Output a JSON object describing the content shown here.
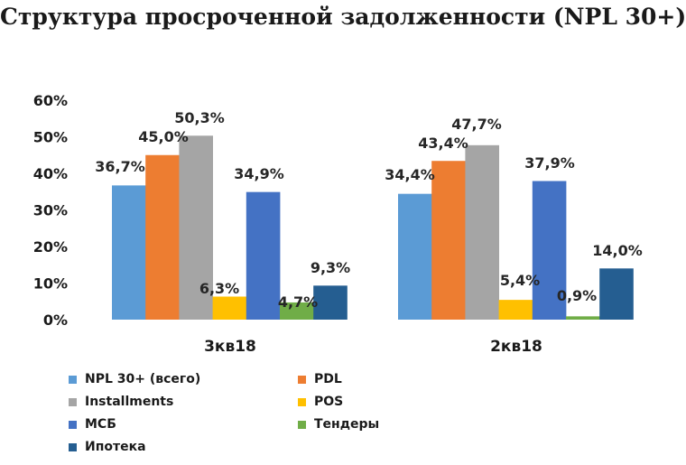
{
  "chart_data": {
    "type": "bar",
    "title": "Структура просроченной задолженности (NPL 30+)",
    "categories": [
      "3кв18",
      "2кв18"
    ],
    "ylim": [
      0,
      60
    ],
    "yticks": [
      "0%",
      "10%",
      "20%",
      "30%",
      "40%",
      "50%",
      "60%"
    ],
    "grid": false,
    "legend_position": "bottom",
    "series": [
      {
        "name": "NPL 30+ (всего)",
        "color": "#5B9BD5",
        "values": [
          36.7,
          34.4
        ],
        "labels": [
          "36,7%",
          "34,4%"
        ]
      },
      {
        "name": "PDL",
        "color": "#ED7D31",
        "values": [
          45.0,
          43.4
        ],
        "labels": [
          "45,0%",
          "43,4%"
        ]
      },
      {
        "name": "Installments",
        "color": "#A5A5A5",
        "values": [
          50.3,
          47.7
        ],
        "labels": [
          "50,3%",
          "47,7%"
        ]
      },
      {
        "name": "POS",
        "color": "#FFC000",
        "values": [
          6.3,
          5.4
        ],
        "labels": [
          "6,3%",
          "5,4%"
        ]
      },
      {
        "name": "МСБ",
        "color": "#4472C4",
        "values": [
          34.9,
          37.9
        ],
        "labels": [
          "34,9%",
          "37,9%"
        ]
      },
      {
        "name": "Тендеры",
        "color": "#70AD47",
        "values": [
          4.7,
          0.9
        ],
        "labels": [
          "4,7%",
          "0,9%"
        ]
      },
      {
        "name": "Ипотека",
        "color": "#255E91",
        "values": [
          9.3,
          14.0
        ],
        "labels": [
          "9,3%",
          "14,0%"
        ]
      }
    ]
  }
}
